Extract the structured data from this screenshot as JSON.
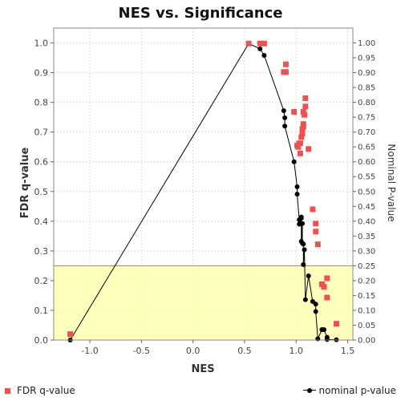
{
  "chart_data": {
    "type": "scatter",
    "title": "NES vs. Significance",
    "xlabel": "NES",
    "ylabel": "FDR q-value",
    "y2label": "Nominal P-value",
    "xlim": [
      -1.35,
      1.55
    ],
    "ylim": [
      0.0,
      1.05
    ],
    "y2lim": [
      0.0,
      1.05
    ],
    "x_ticks": [
      "-1.0",
      "-0.5",
      "0.0",
      "0.5",
      "1.0",
      "1.5"
    ],
    "x_tick_values": [
      -1.0,
      -0.5,
      0.0,
      0.5,
      1.0,
      1.5
    ],
    "y_ticks": [
      "0.0",
      "0.1",
      "0.2",
      "0.3",
      "0.4",
      "0.5",
      "0.6",
      "0.7",
      "0.8",
      "0.9",
      "1.0"
    ],
    "y_tick_values": [
      0.0,
      0.1,
      0.2,
      0.3,
      0.4,
      0.5,
      0.6,
      0.7,
      0.8,
      0.9,
      1.0
    ],
    "y2_ticks": [
      "0.00",
      "0.05",
      "0.10",
      "0.15",
      "0.20",
      "0.25",
      "0.30",
      "0.35",
      "0.40",
      "0.45",
      "0.50",
      "0.55",
      "0.60",
      "0.65",
      "0.70",
      "0.75",
      "0.80",
      "0.85",
      "0.90",
      "0.95",
      "1.00"
    ],
    "y2_tick_values": [
      0.0,
      0.05,
      0.1,
      0.15,
      0.2,
      0.25,
      0.3,
      0.35,
      0.4,
      0.45,
      0.5,
      0.55,
      0.6,
      0.65,
      0.7,
      0.75,
      0.8,
      0.85,
      0.9,
      0.95,
      1.0
    ],
    "grid": true,
    "highlight_band": {
      "y_from": 0.0,
      "y_to": 0.25,
      "color": "#ffffb0"
    },
    "legend_position": "bottom",
    "series": [
      {
        "name": "FDR q-value",
        "kind": "scatter",
        "axis": "left",
        "color": "#f0504f",
        "marker": "square",
        "points": [
          [
            -1.19,
            0.02
          ],
          [
            0.54,
            0.998
          ],
          [
            0.65,
            0.998
          ],
          [
            0.69,
            0.998
          ],
          [
            0.88,
            0.902
          ],
          [
            0.9,
            0.928
          ],
          [
            0.9,
            0.902
          ],
          [
            0.98,
            0.768
          ],
          [
            1.01,
            0.655
          ],
          [
            1.02,
            0.65
          ],
          [
            1.03,
            0.662
          ],
          [
            1.04,
            0.628
          ],
          [
            1.04,
            0.662
          ],
          [
            1.05,
            0.683
          ],
          [
            1.06,
            0.695
          ],
          [
            1.06,
            0.71
          ],
          [
            1.07,
            0.718
          ],
          [
            1.07,
            0.727
          ],
          [
            1.07,
            0.768
          ],
          [
            1.08,
            0.758
          ],
          [
            1.09,
            0.786
          ],
          [
            1.09,
            0.814
          ],
          [
            1.12,
            0.643
          ],
          [
            1.16,
            0.44
          ],
          [
            1.19,
            0.392
          ],
          [
            1.19,
            0.365
          ],
          [
            1.21,
            0.322
          ],
          [
            1.25,
            0.188
          ],
          [
            1.27,
            0.179
          ],
          [
            1.3,
            0.208
          ],
          [
            1.3,
            0.143
          ],
          [
            1.39,
            0.055
          ]
        ]
      },
      {
        "name": "nominal p-value",
        "kind": "line",
        "axis": "right",
        "color": "#000000",
        "marker": "circle",
        "points": [
          [
            -1.19,
            0.0
          ],
          [
            0.54,
            0.998
          ],
          [
            0.65,
            0.98
          ],
          [
            0.69,
            0.958
          ],
          [
            0.88,
            0.772
          ],
          [
            0.89,
            0.748
          ],
          [
            0.89,
            0.72
          ],
          [
            0.98,
            0.6
          ],
          [
            1.01,
            0.516
          ],
          [
            1.01,
            0.491
          ],
          [
            1.03,
            0.405
          ],
          [
            1.03,
            0.39
          ],
          [
            1.04,
            0.392
          ],
          [
            1.05,
            0.41
          ],
          [
            1.05,
            0.414
          ],
          [
            1.05,
            0.332
          ],
          [
            1.06,
            0.392
          ],
          [
            1.06,
            0.326
          ],
          [
            1.07,
            0.323
          ],
          [
            1.07,
            0.254
          ],
          [
            1.08,
            0.304
          ],
          [
            1.09,
            0.136
          ],
          [
            1.12,
            0.216
          ],
          [
            1.16,
            0.13
          ],
          [
            1.19,
            0.121
          ],
          [
            1.19,
            0.096
          ],
          [
            1.21,
            0.004
          ],
          [
            1.25,
            0.035
          ],
          [
            1.27,
            0.035
          ],
          [
            1.3,
            0.009
          ],
          [
            1.3,
            0.002
          ],
          [
            1.39,
            0.001
          ]
        ]
      }
    ]
  }
}
